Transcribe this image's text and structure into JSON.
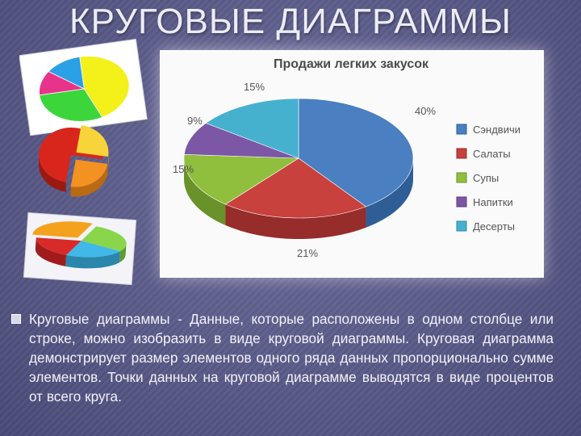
{
  "slide": {
    "title": "КРУГОВЫЕ ДИАГРАММЫ",
    "bullet": "Круговые диаграммы - Данные, которые расположены в одном столбце или строке, можно изобразить в виде круговой диаграммы. Круговая диаграмма демонстрирует размер элементов одного ряда данных пропорционально сумме элементов. Точки данных на круговой диаграмме выводятся в виде процентов от всего круга."
  },
  "chart_data": {
    "type": "pie",
    "title": "Продажи легких закусок",
    "legend_position": "right",
    "categories": [
      "Сэндвичи",
      "Салаты",
      "Супы",
      "Напитки",
      "Десерты"
    ],
    "values": [
      40,
      21,
      15,
      9,
      15
    ],
    "value_labels": [
      "40%",
      "21%",
      "15%",
      "9%",
      "15%"
    ],
    "colors": [
      "#4a7fc1",
      "#c8413c",
      "#8fbf3c",
      "#7b57a6",
      "#46b1cf"
    ],
    "side_colors": [
      "#2f5d96",
      "#962d2a",
      "#6a922a",
      "#5a3e7e",
      "#2f8aa5"
    ]
  },
  "thumbnails": {
    "thumb1_colors": [
      "#f4f01a",
      "#3cd63c",
      "#e8338a",
      "#2aa0e6"
    ],
    "thumb2_colors": [
      "#d9261c",
      "#f39220",
      "#f6d43a"
    ],
    "thumb3_colors": [
      "#f4a21e",
      "#8ad64a",
      "#40b8e8",
      "#d92a2a"
    ]
  }
}
